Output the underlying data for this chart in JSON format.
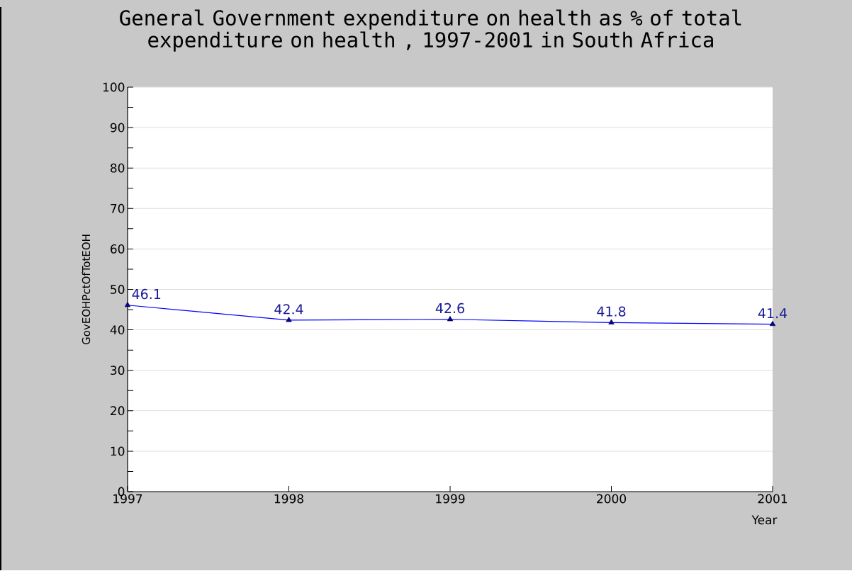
{
  "chart_data": {
    "type": "line",
    "title": "General Government expenditure on health as % of total expenditure on health , 1997-2001 in South Africa",
    "xlabel": "Year",
    "ylabel": "GovEOHPctOfTotEOH",
    "x": [
      1997,
      1998,
      1999,
      2000,
      2001
    ],
    "series": [
      {
        "color": "#0000ff",
        "values": [
          46.1,
          42.4,
          42.6,
          41.8,
          41.4
        ]
      }
    ],
    "xlim": [
      1997,
      2001
    ],
    "xticks": [
      1997,
      1998,
      1999,
      2000,
      2001
    ],
    "ylim": [
      0,
      100
    ],
    "yticks": [
      0,
      10,
      20,
      30,
      40,
      50,
      60,
      70,
      80,
      90,
      100
    ],
    "grid": "y",
    "marker": "triangle",
    "line_style": "solid",
    "data_labels": true,
    "legend": false
  }
}
